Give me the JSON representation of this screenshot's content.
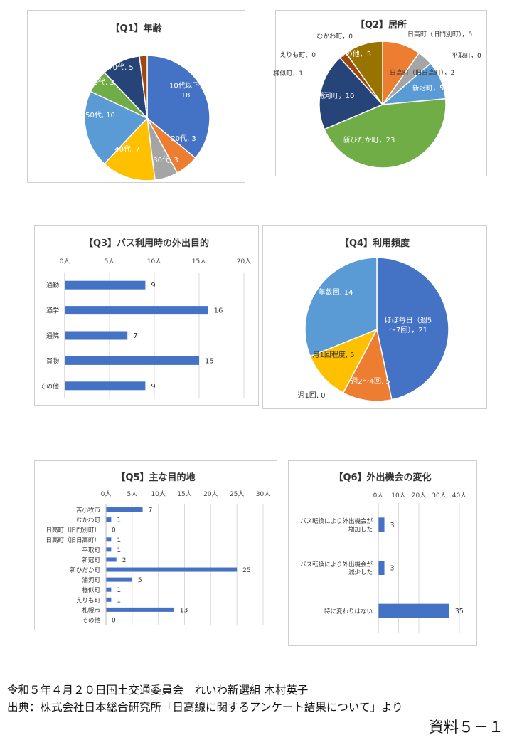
{
  "charts": {
    "q1": {
      "chart_data": {
        "type": "pie",
        "title": "【Q1】年齢",
        "slices": [
          {
            "label": "10代以下",
            "value": 18,
            "color": "#4472C4"
          },
          {
            "label": "20代",
            "value": 3,
            "color": "#ED7D31"
          },
          {
            "label": "30代",
            "value": 3,
            "color": "#A5A5A5"
          },
          {
            "label": "40代",
            "value": 7,
            "color": "#FFC000"
          },
          {
            "label": "50代",
            "value": 10,
            "color": "#5B9BD5"
          },
          {
            "label": "60代",
            "value": 3,
            "color": "#70AD47"
          },
          {
            "label": "70代",
            "value": 5,
            "color": "#264478"
          },
          {
            "label": "80代以上",
            "value": 1,
            "color": "#9E480E"
          }
        ],
        "data_labels": [
          "10代以下,\n18",
          "20代, 3",
          "30代, 3",
          "40代, 7",
          "50代, 10",
          "60代, 3",
          "70代, 5",
          "80代以上, 1"
        ]
      }
    },
    "q2": {
      "chart_data": {
        "type": "pie",
        "title": "【Q2】居所",
        "slices": [
          {
            "label": "日高町（旧門別町）",
            "value": 5,
            "color": "#ED7D31"
          },
          {
            "label": "平取町",
            "value": 0,
            "color": "#A5A5A5"
          },
          {
            "label": "日高町（旧日高町）",
            "value": 2,
            "color": "#A5A5A5"
          },
          {
            "label": "新冠町",
            "value": 5,
            "color": "#5B9BD5"
          },
          {
            "label": "新ひだか町",
            "value": 23,
            "color": "#70AD47"
          },
          {
            "label": "浦河町",
            "value": 10,
            "color": "#264478"
          },
          {
            "label": "様似町",
            "value": 1,
            "color": "#9E480E"
          },
          {
            "label": "えりも町",
            "value": 0,
            "color": "#636363"
          },
          {
            "label": "むかわ町",
            "value": 0,
            "color": "#997300"
          },
          {
            "label": "その他",
            "value": 5,
            "color": "#997300"
          }
        ],
        "data_labels": [
          "日高町（旧門別町），5",
          "平取町，0",
          "日高町（旧日高町），2",
          "新冠町，5",
          "新ひだか町，23",
          "浦河町，10",
          "様似町，1",
          "えりも町，0",
          "むかわ町，0",
          "その他，5"
        ]
      }
    },
    "q3": {
      "chart_data": {
        "type": "bar",
        "title": "【Q3】バス利用時の外出目的",
        "categories": [
          "通勤",
          "通学",
          "通院",
          "買物",
          "その他"
        ],
        "values": [
          9,
          16,
          7,
          15,
          9
        ],
        "xlim": [
          0,
          20
        ],
        "ticks": [
          "0人",
          "5人",
          "10人",
          "15人",
          "20人"
        ],
        "bar_color": "#4472C4"
      }
    },
    "q4": {
      "chart_data": {
        "type": "pie",
        "title": "【Q4】利用頻度",
        "slices": [
          {
            "label": "ほぼ毎日（週5〜7回）",
            "value": 21,
            "color": "#4472C4"
          },
          {
            "label": "週2〜4回",
            "value": 5,
            "color": "#ED7D31"
          },
          {
            "label": "週1回",
            "value": 0,
            "color": "#A5A5A5"
          },
          {
            "label": "月1回程度",
            "value": 5,
            "color": "#FFC000"
          },
          {
            "label": "年数回",
            "value": 14,
            "color": "#5B9BD5"
          }
        ],
        "data_labels": [
          "ほぼ毎日（週5\n〜7回），21",
          "週2〜4回, 5",
          "週1回, 0",
          "月1回程度, 5",
          "年数回, 14"
        ]
      }
    },
    "q5": {
      "chart_data": {
        "type": "bar",
        "title": "【Q5】主な目的地",
        "categories": [
          "苫小牧市",
          "むかわ町",
          "日高町（旧門別町）",
          "日高町（旧日高町）",
          "平取町",
          "新冠町",
          "新ひだか町",
          "浦河町",
          "様似町",
          "えりも町",
          "札幌市",
          "その他"
        ],
        "values": [
          7,
          1,
          0,
          1,
          1,
          2,
          25,
          5,
          1,
          1,
          13,
          0
        ],
        "xlim": [
          0,
          30
        ],
        "ticks": [
          "0人",
          "5人",
          "10人",
          "15人",
          "20人",
          "25人",
          "30人"
        ],
        "bar_color": "#4472C4"
      }
    },
    "q6": {
      "chart_data": {
        "type": "bar",
        "title": "【Q6】外出機会の変化",
        "categories": [
          "バス転換により外出機会が\n増加した",
          "バス転換により外出機会が\n減少した",
          "特に変わりはない"
        ],
        "values": [
          3,
          3,
          35
        ],
        "xlim": [
          0,
          40
        ],
        "ticks": [
          "0人",
          "10人",
          "20人",
          "30人",
          "40人"
        ],
        "bar_color": "#4472C4"
      }
    }
  },
  "footer": {
    "line1": "令和５年４月２０日国土交通委員会　れいわ新選組 木村英子",
    "line2": "出典：株式会社日本総合研究所「日高線に関するアンケート結果について」より",
    "doc_label": "資料５－１"
  }
}
